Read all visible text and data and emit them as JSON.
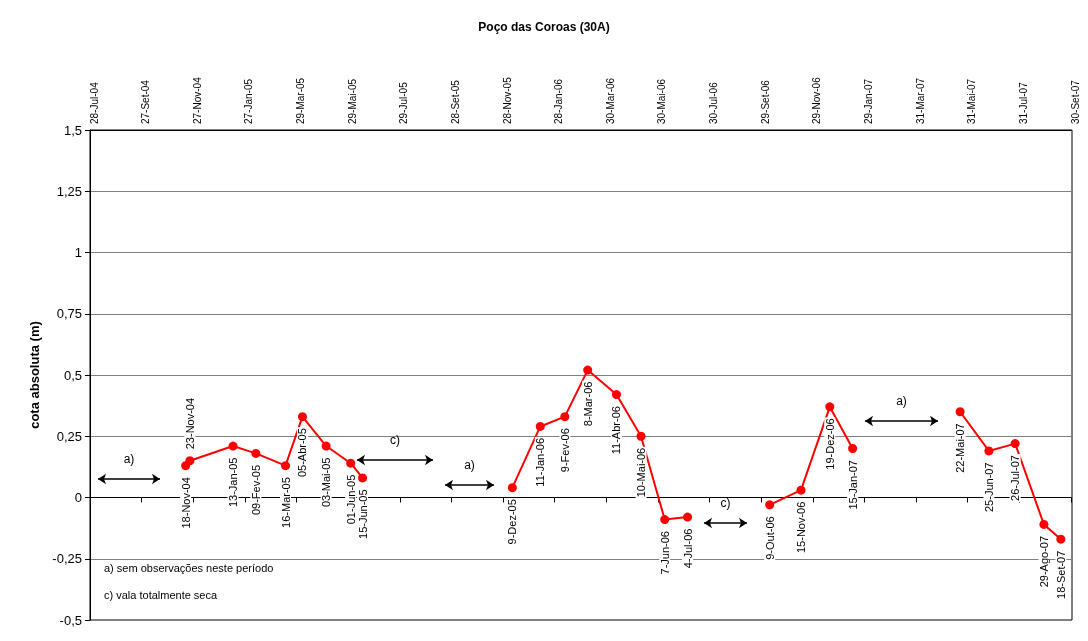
{
  "chart_data": {
    "type": "line",
    "title": "Poço das Coroas (30A)",
    "ylabel": "cota absoluta (m)",
    "xlim": [
      "2004-07-28",
      "2007-09-30"
    ],
    "xticks": [
      {
        "value": "2004-07-28",
        "label": "28-Jul-04"
      },
      {
        "value": "2004-09-27",
        "label": "27-Set-04"
      },
      {
        "value": "2004-11-27",
        "label": "27-Nov-04"
      },
      {
        "value": "2005-01-27",
        "label": "27-Jan-05"
      },
      {
        "value": "2005-03-29",
        "label": "29-Mar-05"
      },
      {
        "value": "2005-05-29",
        "label": "29-Mai-05"
      },
      {
        "value": "2005-07-29",
        "label": "29-Jul-05"
      },
      {
        "value": "2005-09-28",
        "label": "28-Set-05"
      },
      {
        "value": "2005-11-28",
        "label": "28-Nov-05"
      },
      {
        "value": "2006-01-28",
        "label": "28-Jan-06"
      },
      {
        "value": "2006-03-30",
        "label": "30-Mar-06"
      },
      {
        "value": "2006-05-30",
        "label": "30-Mai-06"
      },
      {
        "value": "2006-07-30",
        "label": "30-Jul-06"
      },
      {
        "value": "2006-09-29",
        "label": "29-Set-06"
      },
      {
        "value": "2006-11-29",
        "label": "29-Nov-06"
      },
      {
        "value": "2007-01-29",
        "label": "29-Jan-07"
      },
      {
        "value": "2007-03-31",
        "label": "31-Mar-07"
      },
      {
        "value": "2007-05-31",
        "label": "31-Mai-07"
      },
      {
        "value": "2007-07-31",
        "label": "31-Jul-07"
      },
      {
        "value": "2007-09-30",
        "label": "30-Set-07"
      }
    ],
    "ylim": [
      -0.5,
      1.5
    ],
    "yticks": [
      {
        "value": -0.5,
        "label": "-0,5"
      },
      {
        "value": -0.25,
        "label": "-0,25"
      },
      {
        "value": 0,
        "label": "0"
      },
      {
        "value": 0.25,
        "label": "0,25"
      },
      {
        "value": 0.5,
        "label": "0,5"
      },
      {
        "value": 0.75,
        "label": "0,75"
      },
      {
        "value": 1,
        "label": "1"
      },
      {
        "value": 1.25,
        "label": "1,25"
      },
      {
        "value": 1.5,
        "label": "1,5"
      }
    ],
    "grid": "y",
    "marker": "circle",
    "line_style": "solid",
    "series": [
      {
        "color": "#ff0000",
        "x": [
          "2004-11-18",
          "2004-11-23",
          "2005-01-13",
          "2005-02-09",
          "2005-03-16",
          "2005-04-05",
          "2005-05-03",
          "2005-06-01",
          "2005-06-15"
        ],
        "values": [
          0.13,
          0.15,
          0.21,
          0.18,
          0.13,
          0.33,
          0.21,
          0.14,
          0.08
        ],
        "value_labels": [
          "18-Nov-04",
          "23-Nov-04",
          "13-Jan-05",
          "09-Fev-05",
          "16-Mar-05",
          "05-Abr-05",
          "03-Mai-05",
          "01-Jun-05",
          "15-Jun-05"
        ]
      },
      {
        "color": "#ff0000",
        "x": [
          "2005-12-09",
          "2006-01-11",
          "2006-02-09",
          "2006-03-08",
          "2006-04-11",
          "2006-05-10",
          "2006-06-07",
          "2006-07-04"
        ],
        "values": [
          0.04,
          0.29,
          0.33,
          0.52,
          0.42,
          0.25,
          -0.09,
          -0.08
        ],
        "value_labels": [
          "9-Dez-05",
          "11-Jan-06",
          "9-Fev-06",
          "8-Mar-06",
          "11-Abr-06",
          "10-Mai-06",
          "7-Jun-06",
          "4-Jul-06"
        ]
      },
      {
        "color": "#ff0000",
        "x": [
          "2006-10-09",
          "2006-11-15",
          "2006-12-19",
          "2007-01-15"
        ],
        "values": [
          -0.03,
          0.03,
          0.37,
          0.2
        ],
        "value_labels": [
          "9-Out-06",
          "15-Nov-06",
          "19-Dez-06",
          "15-Jan-07"
        ]
      },
      {
        "color": "#ff0000",
        "x": [
          "2007-05-22",
          "2007-06-25",
          "2007-07-26",
          "2007-08-29",
          "2007-09-18"
        ],
        "values": [
          0.35,
          0.19,
          0.22,
          -0.11,
          -0.17
        ],
        "value_labels": [
          "22-Mai-07",
          "25-Jun-07",
          "26-Jul-07",
          "29-Ago-07",
          "18-Set-07"
        ]
      }
    ],
    "annotations": [
      "a)",
      "c)",
      "a)",
      "c)",
      "a)",
      "a) sem observações neste período",
      "c) vala totalmente seca"
    ]
  }
}
